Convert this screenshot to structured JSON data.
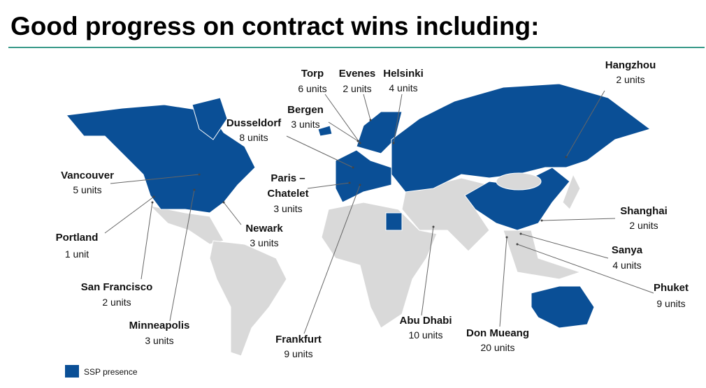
{
  "header": {
    "title": "Good progress on contract wins including:"
  },
  "locations": [
    {
      "name": "Torp",
      "units": "6 units"
    },
    {
      "name": "Evenes",
      "units": "2 units"
    },
    {
      "name": "Helsinki",
      "units": "4 units"
    },
    {
      "name": "Hangzhou",
      "units": "2 units"
    },
    {
      "name": "Bergen",
      "units": "3 units"
    },
    {
      "name": "Dusseldorf",
      "units": "8 units"
    },
    {
      "name": "Vancouver",
      "units": "5 units"
    },
    {
      "name": "Paris –\nChatelet",
      "units": "3 units"
    },
    {
      "name": "Shanghai",
      "units": "2 units"
    },
    {
      "name": "Portland",
      "units": "1 unit"
    },
    {
      "name": "Newark",
      "units": "3 units"
    },
    {
      "name": "Sanya",
      "units": "4 units"
    },
    {
      "name": "Phuket",
      "units": "9 units"
    },
    {
      "name": "San Francisco",
      "units": "2 units"
    },
    {
      "name": "Minneapolis",
      "units": "3 units"
    },
    {
      "name": "Frankfurt",
      "units": "9 units"
    },
    {
      "name": "Abu Dhabi",
      "units": "10 units"
    },
    {
      "name": "Don Mueang",
      "units": "20 units"
    }
  ],
  "legend": {
    "label": "SSP presence"
  }
}
